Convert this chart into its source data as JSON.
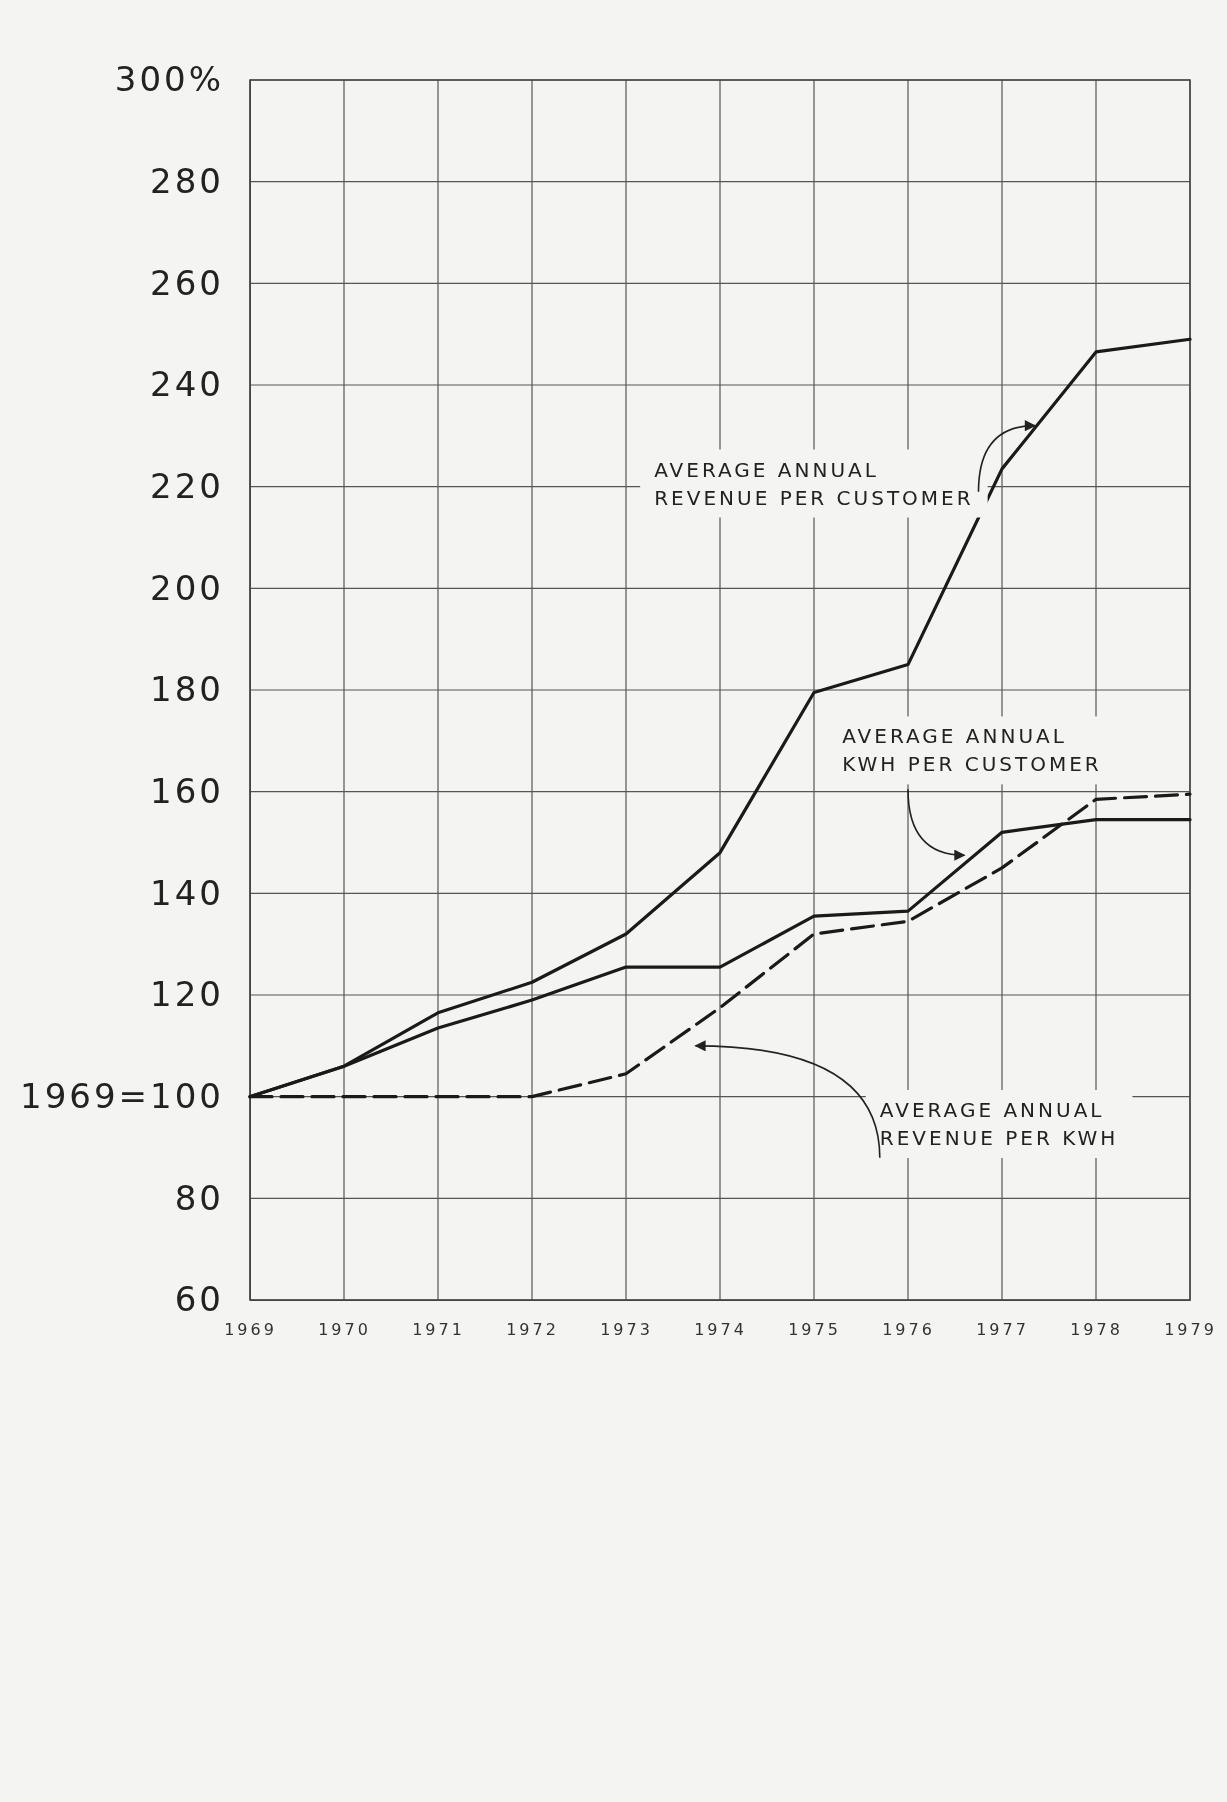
{
  "chart_data": {
    "type": "line",
    "x": [
      1969,
      1970,
      1971,
      1972,
      1973,
      1974,
      1975,
      1976,
      1977,
      1978,
      1979
    ],
    "series": [
      {
        "name": "AVERAGE ANNUAL REVENUE PER CUSTOMER",
        "color": "#1a1a1a",
        "line_style": "solid",
        "values": [
          100,
          106,
          116.5,
          122.5,
          132,
          148,
          179.5,
          185,
          223.5,
          246.5,
          249
        ]
      },
      {
        "name": "AVERAGE ANNUAL KWH PER CUSTOMER",
        "color": "#1a1a1a",
        "line_style": "solid",
        "values": [
          100,
          106,
          113.5,
          119,
          125.5,
          125.5,
          135.5,
          136.5,
          152,
          154.5,
          154.5
        ]
      },
      {
        "name": "AVERAGE ANNUAL REVENUE PER KWH",
        "color": "#1a1a1a",
        "line_style": "dashed",
        "values": [
          100,
          100,
          100,
          100,
          104.5,
          117.5,
          132,
          134.5,
          145,
          158.5,
          159.5
        ]
      }
    ],
    "xlim": [
      1969,
      1979
    ],
    "xticks": [
      1969,
      1970,
      1971,
      1972,
      1973,
      1974,
      1975,
      1976,
      1977,
      1978,
      1979
    ],
    "ylim": [
      60,
      300
    ],
    "yticks": [
      60,
      80,
      {
        "value": 100,
        "label": "1969=100"
      },
      120,
      140,
      160,
      180,
      200,
      220,
      240,
      260,
      280,
      {
        "value": 300,
        "label": "300%"
      }
    ],
    "grid": true,
    "legend": false,
    "marker": "none"
  }
}
